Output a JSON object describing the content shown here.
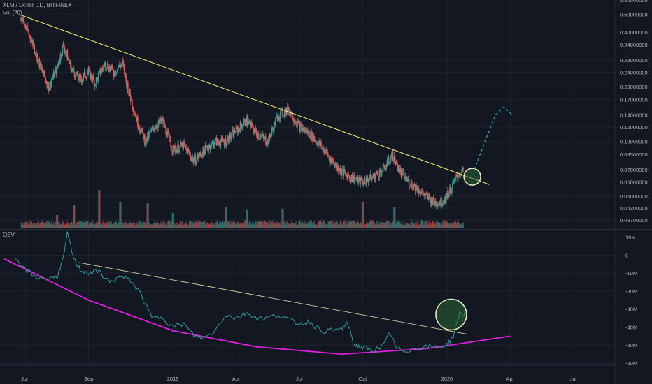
{
  "header": {
    "title": "XLM / Dollar, 1D, BITFINEX",
    "volume_label": "Vol (20)",
    "obv_label": "OBV"
  },
  "colors": {
    "background": "#131722",
    "grid": "#1e222d",
    "up": "#26a69a",
    "down": "#ef5350",
    "trendline": "#f5ef6b",
    "obv_line": "#2e9c9c",
    "arc": "#e020e0",
    "circle_fill": "#2d6a3a"
  },
  "chart_data": [
    {
      "type": "candlestick",
      "title": "XLM / Dollar, 1D, BITFINEX",
      "y_scale": "log",
      "ylim": [
        0.033,
        0.6
      ],
      "y_ticks": [
        "0.60000000",
        "0.50000000",
        "0.40000000",
        "0.34000000",
        "0.28000000",
        "0.24000000",
        "0.20000000",
        "0.17000000",
        "0.14000000",
        "0.12000000",
        "0.10000000",
        "0.08500000",
        "0.07000000",
        "0.06000000",
        "0.05000000",
        "0.04300000",
        "0.03700000"
      ],
      "x_ticks": [
        "Jun",
        "Sep",
        "2019",
        "Apr",
        "Jul",
        "Oct",
        "2020",
        "Apr",
        "Jul"
      ],
      "x_tick_months": [
        0,
        3,
        7,
        10,
        13,
        16,
        20,
        23,
        26
      ],
      "xlim_months": [
        -1.2,
        28
      ],
      "price_path": [
        [
          -0.2,
          0.48
        ],
        [
          0.3,
          0.36
        ],
        [
          0.7,
          0.26
        ],
        [
          1.1,
          0.2
        ],
        [
          1.5,
          0.25
        ],
        [
          1.8,
          0.34
        ],
        [
          2.2,
          0.25
        ],
        [
          2.6,
          0.22
        ],
        [
          3.0,
          0.24
        ],
        [
          3.3,
          0.21
        ],
        [
          3.8,
          0.27
        ],
        [
          4.2,
          0.24
        ],
        [
          4.6,
          0.27
        ],
        [
          4.9,
          0.19
        ],
        [
          5.3,
          0.13
        ],
        [
          5.7,
          0.1
        ],
        [
          6.1,
          0.12
        ],
        [
          6.5,
          0.13
        ],
        [
          7.0,
          0.09
        ],
        [
          7.5,
          0.095
        ],
        [
          8.0,
          0.078
        ],
        [
          8.5,
          0.09
        ],
        [
          9.0,
          0.1
        ],
        [
          9.5,
          0.1
        ],
        [
          10.0,
          0.115
        ],
        [
          10.5,
          0.13
        ],
        [
          11.0,
          0.11
        ],
        [
          11.5,
          0.1
        ],
        [
          12.0,
          0.14
        ],
        [
          12.5,
          0.15
        ],
        [
          13.0,
          0.12
        ],
        [
          13.5,
          0.11
        ],
        [
          14.0,
          0.095
        ],
        [
          14.5,
          0.08
        ],
        [
          15.0,
          0.068
        ],
        [
          15.5,
          0.063
        ],
        [
          16.0,
          0.06
        ],
        [
          16.5,
          0.064
        ],
        [
          17.0,
          0.07
        ],
        [
          17.4,
          0.085
        ],
        [
          17.8,
          0.067
        ],
        [
          18.2,
          0.06
        ],
        [
          18.6,
          0.055
        ],
        [
          19.0,
          0.05
        ],
        [
          19.4,
          0.046
        ],
        [
          19.8,
          0.047
        ],
        [
          20.2,
          0.055
        ],
        [
          20.5,
          0.065
        ],
        [
          20.8,
          0.07
        ]
      ],
      "volume_spikes": [
        [
          1.5,
          0.3
        ],
        [
          2.3,
          0.55
        ],
        [
          3.5,
          0.9
        ],
        [
          4.5,
          0.6
        ],
        [
          5.8,
          0.58
        ],
        [
          7.0,
          0.35
        ],
        [
          9.5,
          0.5
        ],
        [
          10.5,
          0.42
        ],
        [
          12.2,
          0.45
        ],
        [
          16.0,
          0.6
        ],
        [
          17.5,
          0.5
        ]
      ],
      "annotations": {
        "resistance_line": [
          [
            -0.3,
            0.5
          ],
          [
            22.0,
            0.058
          ]
        ],
        "breakout_circle": {
          "x": 21.2,
          "y": 0.064
        },
        "projection_path": [
          [
            21.3,
            0.07
          ],
          [
            21.8,
            0.1
          ],
          [
            22.3,
            0.14
          ],
          [
            22.7,
            0.155
          ],
          [
            23.1,
            0.14
          ]
        ]
      }
    },
    {
      "type": "line",
      "title": "OBV",
      "ylim": [
        -60,
        13
      ],
      "y_ticks": [
        "10M",
        "0",
        "-10M",
        "-20M",
        "-30M",
        "-40M",
        "-50M",
        "-60M"
      ],
      "y_tick_values": [
        10,
        0,
        -10,
        -20,
        -30,
        -40,
        -50,
        -60
      ],
      "series": [
        {
          "x": [
            -0.5,
            0,
            0.5,
            1.0,
            1.5,
            1.8,
            2.0,
            2.3,
            2.6,
            3.0,
            3.5,
            4.0,
            4.5,
            5.0,
            5.5,
            6.0,
            6.5,
            7.0,
            7.5,
            8.0,
            8.5,
            9.0,
            9.5,
            10.0,
            10.5,
            11.0,
            11.5,
            12.0,
            12.5,
            13.0,
            13.5,
            14.0,
            14.5,
            15.0,
            15.3,
            15.6,
            15.9,
            16.2,
            16.5,
            17.0,
            17.3,
            17.6,
            18.0,
            18.5,
            19.0,
            19.5,
            20.0,
            20.3,
            20.6,
            20.9
          ],
          "values": [
            -3,
            -8,
            -12,
            -13,
            -12,
            -2,
            12,
            -2,
            -8,
            -10,
            -9,
            -15,
            -12,
            -14,
            -22,
            -35,
            -34,
            -40,
            -38,
            -45,
            -46,
            -42,
            -33,
            -35,
            -32,
            -35,
            -35,
            -33,
            -36,
            -38,
            -37,
            -42,
            -42,
            -41,
            -38,
            -50,
            -51,
            -52,
            -53,
            -50,
            -43,
            -52,
            -53,
            -52,
            -51,
            -51,
            -50,
            -45,
            -32,
            -33
          ]
        }
      ],
      "annotations": {
        "downtrend_line": [
          [
            2.5,
            -4
          ],
          [
            21.0,
            -44
          ]
        ],
        "arc": [
          [
            -1.0,
            -2
          ],
          [
            3,
            -25
          ],
          [
            7,
            -42
          ],
          [
            11,
            -51
          ],
          [
            15,
            -55
          ],
          [
            19,
            -52
          ],
          [
            23,
            -45
          ]
        ],
        "highlight_circle": {
          "x": 20.2,
          "y": -33
        }
      }
    }
  ]
}
